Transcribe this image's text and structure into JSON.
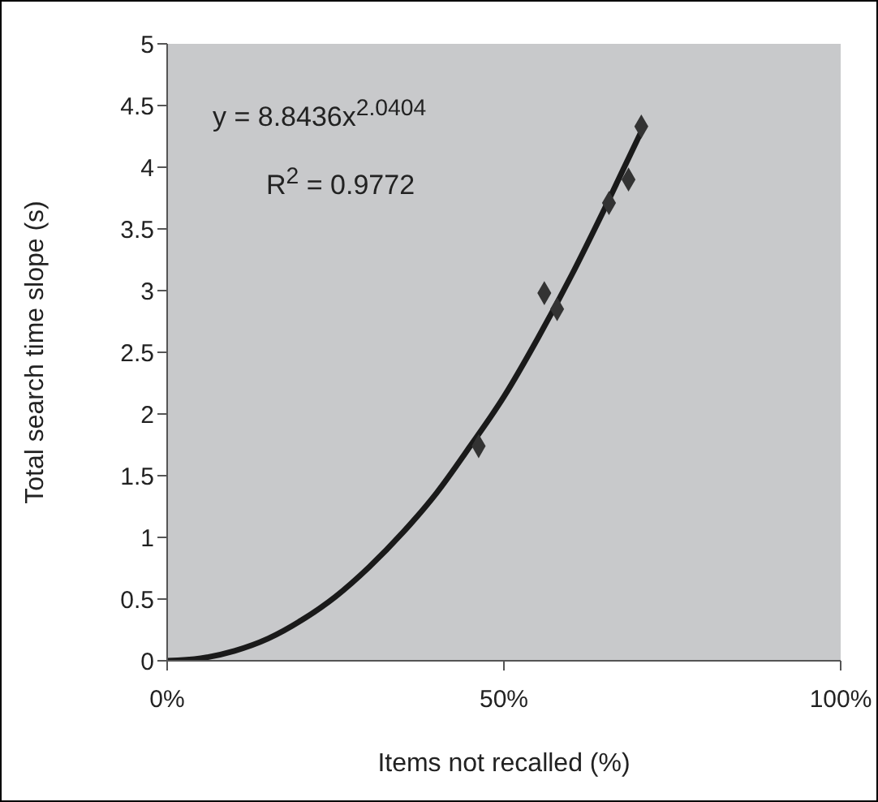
{
  "chart_data": {
    "type": "scatter",
    "xlabel": "Items not recalled (%)",
    "ylabel": "Total search time slope (s)",
    "annotations": [
      "y = 8.8436x$^{2.0404}$",
      "R$^{2}$ = 0.9772"
    ],
    "xlim": [
      0,
      100
    ],
    "xticks": [
      {
        "value": 0,
        "label": "0%"
      },
      {
        "value": 50,
        "label": "50%"
      },
      {
        "value": 100,
        "label": "100%"
      }
    ],
    "ylim": [
      0,
      5
    ],
    "yticks": [
      0,
      0.5,
      1,
      1.5,
      2,
      2.5,
      3,
      3.5,
      4,
      4.5,
      5
    ],
    "grid": false,
    "series": [
      {
        "color": "#333333",
        "marker": "diamond",
        "x": [
          46.25,
          56.0,
          57.9,
          65.6,
          68.5,
          70.4
        ],
        "values": [
          1.74,
          2.98,
          2.85,
          3.71,
          3.9,
          4.33
        ]
      },
      {
        "type": "line",
        "color": "#1a1a1a",
        "marker": "none",
        "line_style": "solid",
        "x": [
          0,
          5,
          10,
          15,
          20,
          25,
          30,
          35,
          40,
          45,
          50,
          55,
          60,
          65,
          70.4
        ],
        "values": [
          0,
          0.02,
          0.08,
          0.18,
          0.33,
          0.52,
          0.76,
          1.04,
          1.36,
          1.74,
          2.14,
          2.61,
          3.12,
          3.67,
          4.29
        ]
      }
    ]
  }
}
